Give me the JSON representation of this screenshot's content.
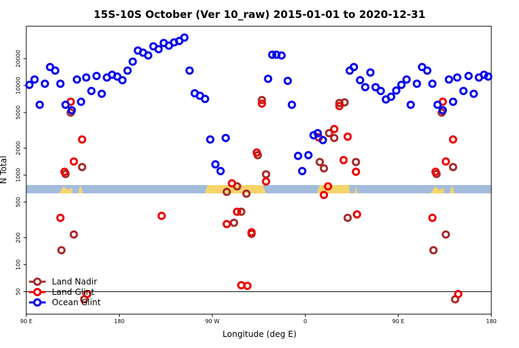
{
  "chart_data": {
    "type": "scatter",
    "title": "15S-10S October (Ver 10_raw)   2015-01-01 to 2020-12-31",
    "x_label": "Longitude (deg E)",
    "y_label": "N Total",
    "log_y": true,
    "legend": "bottom-left",
    "xlim": [
      90,
      540
    ],
    "ylim": [
      28,
      46000
    ],
    "xticks": [
      {
        "value": 90,
        "label": "90 E"
      },
      180,
      {
        "value": 270,
        "label": "90 W"
      },
      {
        "value": 360,
        "label": "0"
      },
      {
        "value": 450,
        "label": "90 E"
      },
      {
        "value": 540,
        "label": "180"
      }
    ],
    "yticks": [
      50,
      100,
      200,
      500,
      1000,
      2000,
      5000,
      10000,
      20000
    ],
    "hline": 50,
    "series": [
      {
        "name": "Land Nadir",
        "color": "#a52a2a",
        "x": [
          124,
          133,
          128,
          144,
          136,
          146,
          284,
          291,
          294,
          298,
          303,
          308,
          314,
          318,
          322,
          374,
          378,
          383,
          388,
          393,
          398,
          401,
          409,
          484,
          492,
          487,
          503,
          496,
          505
        ],
        "values": [
          145,
          5000,
          1030,
          1230,
          217,
          41,
          650,
          294,
          750,
          390,
          620,
          221,
          1670,
          6900,
          1020,
          1400,
          1190,
          2940,
          2600,
          6400,
          6500,
          333,
          1400,
          145,
          5000,
          1030,
          1230,
          217,
          41
        ]
      },
      {
        "name": "Land Glint",
        "color": "#ee0000",
        "x": [
          133,
          127,
          136,
          144,
          149,
          123,
          221,
          284,
          289,
          294,
          298,
          304,
          308,
          313,
          318,
          322,
          373,
          378,
          382,
          388,
          393,
          397,
          401,
          409,
          410,
          483,
          486,
          493,
          496,
          503,
          508
        ],
        "values": [
          6600,
          1090,
          1420,
          2500,
          47,
          333,
          351,
          284,
          810,
          390,
          59,
          58,
          230,
          1790,
          6300,
          850,
          2640,
          600,
          750,
          3270,
          5900,
          1470,
          2690,
          1090,
          364,
          333,
          1090,
          6600,
          1420,
          2500,
          47
        ]
      },
      {
        "name": "Ocean Glint",
        "color": "#0000ee",
        "x": [
          93,
          98,
          103,
          108,
          113,
          118,
          123,
          128,
          134,
          139,
          143,
          148,
          153,
          158,
          163,
          168,
          173,
          178,
          183,
          188,
          193,
          198,
          203,
          208,
          213,
          218,
          223,
          228,
          233,
          238,
          243,
          248,
          253,
          258,
          263,
          268,
          273,
          278,
          283,
          324,
          328,
          332,
          337,
          343,
          347,
          353,
          357,
          363,
          368,
          372,
          377,
          403,
          407,
          413,
          418,
          423,
          428,
          433,
          438,
          443,
          448,
          453,
          458,
          462,
          468,
          473,
          478,
          483,
          488,
          493,
          499,
          503,
          507,
          513,
          518,
          523,
          528,
          533,
          537
        ],
        "values": [
          10200,
          11700,
          6100,
          10500,
          16100,
          14700,
          10500,
          6100,
          5300,
          11700,
          6600,
          12300,
          8700,
          12800,
          8100,
          12300,
          13200,
          12600,
          11500,
          14700,
          18500,
          24600,
          23300,
          21700,
          27400,
          25500,
          29900,
          27900,
          30400,
          31500,
          34400,
          14700,
          8200,
          7700,
          7100,
          2500,
          1320,
          1110,
          2600,
          11900,
          22100,
          22100,
          21700,
          11300,
          6100,
          1640,
          1110,
          1670,
          2790,
          2940,
          2460,
          14700,
          16100,
          11500,
          9600,
          14000,
          9600,
          8700,
          7000,
          7500,
          8800,
          10200,
          11700,
          6100,
          10500,
          16100,
          14700,
          10500,
          6100,
          5300,
          11700,
          6600,
          12300,
          8700,
          12800,
          8100,
          12300,
          13200,
          12600
        ]
      }
    ]
  }
}
